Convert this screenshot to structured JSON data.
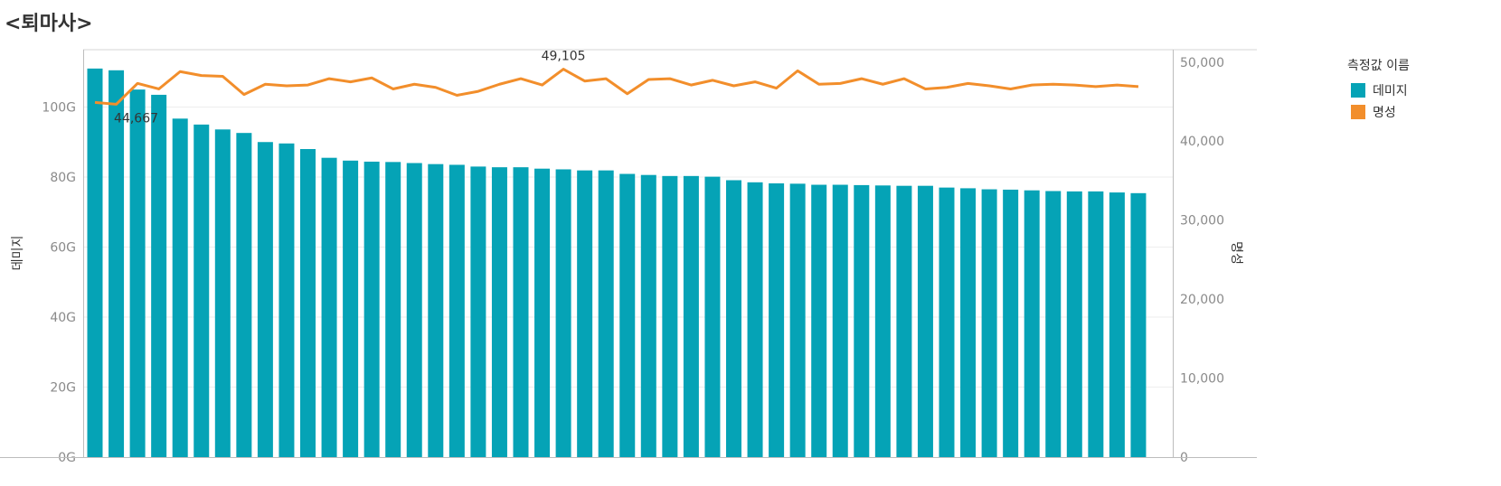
{
  "title": "<퇴마사>",
  "legend": {
    "title": "측정값 이름",
    "items": [
      {
        "label": "데미지",
        "color": "#05A3B6"
      },
      {
        "label": "명성",
        "color": "#F28E2B"
      }
    ]
  },
  "chart_data": {
    "type": "bar",
    "ylabel": "데미지",
    "y2label": "명성",
    "ylim": [
      0,
      113.5
    ],
    "y2lim": [
      0,
      50500
    ],
    "left_ticks": [
      "0G",
      "20G",
      "40G",
      "60G",
      "80G",
      "100G"
    ],
    "left_tick_values": [
      0,
      20,
      40,
      60,
      80,
      100
    ],
    "right_ticks": [
      "0",
      "10,000",
      "20,000",
      "30,000",
      "40,000",
      "50,000"
    ],
    "right_tick_values": [
      0,
      10000,
      20000,
      30000,
      40000,
      50000
    ],
    "series": [
      {
        "name": "데미지",
        "type": "bar",
        "unit": "G",
        "values": [
          111.0,
          110.5,
          105.0,
          103.5,
          96.7,
          95.0,
          93.6,
          92.6,
          90.0,
          89.6,
          88.0,
          85.5,
          84.7,
          84.4,
          84.3,
          84.0,
          83.7,
          83.5,
          83.0,
          82.8,
          82.8,
          82.4,
          82.2,
          81.9,
          81.9,
          80.9,
          80.6,
          80.3,
          80.3,
          80.1,
          79.1,
          78.5,
          78.2,
          78.1,
          77.8,
          77.8,
          77.7,
          77.6,
          77.5,
          77.5,
          77.0,
          76.8,
          76.5,
          76.4,
          76.2,
          76.0,
          75.9,
          75.9,
          75.6,
          75.4
        ]
      },
      {
        "name": "명성",
        "type": "line",
        "values": [
          44900,
          44667,
          47300,
          46600,
          48800,
          48300,
          48200,
          45900,
          47200,
          47000,
          47100,
          47900,
          47500,
          48000,
          46600,
          47200,
          46800,
          45800,
          46300,
          47200,
          47900,
          47100,
          49105,
          47600,
          47900,
          46000,
          47800,
          47900,
          47100,
          47700,
          47000,
          47500,
          46700,
          48900,
          47200,
          47300,
          47900,
          47200,
          47900,
          46600,
          46800,
          47300,
          47000,
          46600,
          47100,
          47200,
          47100,
          46900,
          47100,
          46900
        ]
      }
    ],
    "annotations": [
      {
        "text": "44,667",
        "index": 1,
        "series": "명성"
      },
      {
        "text": "49,105",
        "index": 22,
        "series": "명성"
      }
    ]
  }
}
